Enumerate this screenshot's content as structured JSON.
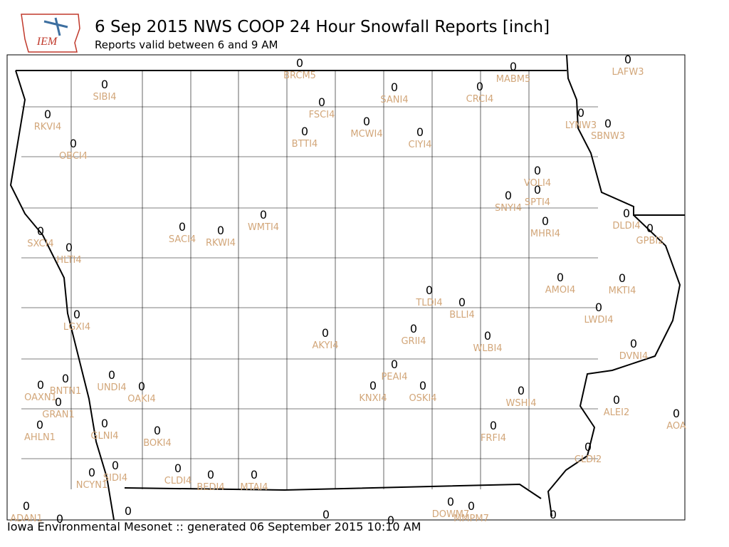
{
  "header": {
    "logo_text": "IEM",
    "title": "6 Sep 2015 NWS COOP 24 Hour Snowfall Reports [inch]",
    "subtitle": "Reports valid between 6 and 9 AM"
  },
  "footer": "Iowa Environmental Mesonet :: generated 06 September 2015 10:10 AM",
  "stations": [
    {
      "label": "BRCM5",
      "value": 0
    },
    {
      "label": "MABM5",
      "value": 0
    },
    {
      "label": "LAFW3",
      "value": 0
    },
    {
      "label": "SIBI4",
      "value": 0
    },
    {
      "label": "SANI4",
      "value": 0
    },
    {
      "label": "CRCI4",
      "value": 0
    },
    {
      "label": "FSCI4",
      "value": 0
    },
    {
      "label": "RKVI4",
      "value": 0
    },
    {
      "label": "MCWI4",
      "value": 0
    },
    {
      "label": "LYNW3",
      "value": 0
    },
    {
      "label": "SBNW3",
      "value": 0
    },
    {
      "label": "BTTI4",
      "value": 0
    },
    {
      "label": "CIYI4",
      "value": 0
    },
    {
      "label": "OBCI4",
      "value": 0
    },
    {
      "label": "VOLI4",
      "value": 0
    },
    {
      "label": "SPTI4",
      "value": 0
    },
    {
      "label": "SNYI4",
      "value": 0
    },
    {
      "label": "DLDI4",
      "value": 0
    },
    {
      "label": "GPBI2",
      "value": 0
    },
    {
      "label": "WMTI4",
      "value": 0
    },
    {
      "label": "MHRI4",
      "value": 0
    },
    {
      "label": "SACI4",
      "value": 0
    },
    {
      "label": "RKWI4",
      "value": 0
    },
    {
      "label": "SXCI4",
      "value": 0
    },
    {
      "label": "HLTI4",
      "value": 0
    },
    {
      "label": "AMOI4",
      "value": 0
    },
    {
      "label": "MKTI4",
      "value": 0
    },
    {
      "label": "TLDI4",
      "value": 0
    },
    {
      "label": "BLLI4",
      "value": 0
    },
    {
      "label": "LWDI4",
      "value": 0
    },
    {
      "label": "LGXI4",
      "value": 0
    },
    {
      "label": "AKYI4",
      "value": 0
    },
    {
      "label": "GRII4",
      "value": 0
    },
    {
      "label": "WLBI4",
      "value": 0
    },
    {
      "label": "DVNI4",
      "value": 0
    },
    {
      "label": "PEAI4",
      "value": 0
    },
    {
      "label": "UNDI4",
      "value": 0
    },
    {
      "label": "BNTN1",
      "value": 0
    },
    {
      "label": "OAKI4",
      "value": 0
    },
    {
      "label": "OAXN1",
      "value": 0
    },
    {
      "label": "KNXI4",
      "value": 0
    },
    {
      "label": "OSKI4",
      "value": 0
    },
    {
      "label": "WSHI4",
      "value": 0
    },
    {
      "label": "GRAN1",
      "value": 0
    },
    {
      "label": "ALEI2",
      "value": 0
    },
    {
      "label": "AOA",
      "value": 0
    },
    {
      "label": "AHLN1",
      "value": 0
    },
    {
      "label": "GLNI4",
      "value": 0
    },
    {
      "label": "BOKI4",
      "value": 0
    },
    {
      "label": "FRFI4",
      "value": 0
    },
    {
      "label": "CLDI2",
      "value": 0
    },
    {
      "label": "SIDI4",
      "value": 0
    },
    {
      "label": "CLDI4",
      "value": 0
    },
    {
      "label": "BEDI4",
      "value": 0
    },
    {
      "label": "MTAI4",
      "value": 0
    },
    {
      "label": "NCYN1",
      "value": 0
    },
    {
      "label": "ADAN1",
      "value": 0
    },
    {
      "label": "DOWM7",
      "value": 0
    },
    {
      "label": "MMPM7",
      "value": 0
    },
    {
      "label": null,
      "value": 0
    },
    {
      "label": null,
      "value": 0
    },
    {
      "label": null,
      "value": 0
    },
    {
      "label": null,
      "value": 0
    },
    {
      "label": null,
      "value": 0
    }
  ]
}
